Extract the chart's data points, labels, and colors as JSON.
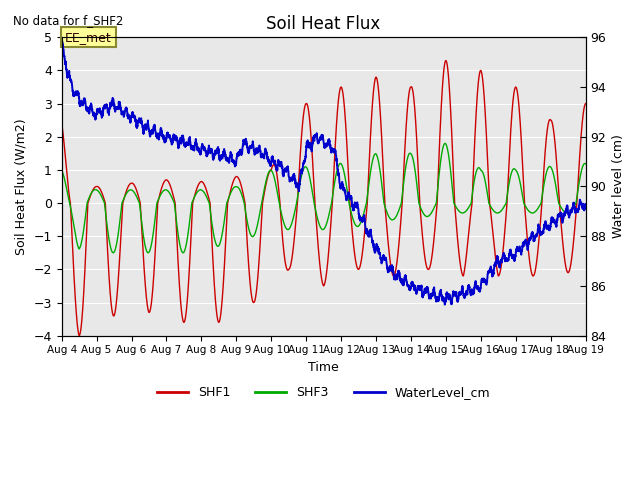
{
  "title": "Soil Heat Flux",
  "subtitle": "No data for f_SHF2",
  "xlabel": "Time",
  "ylabel_left": "Soil Heat Flux (W/m2)",
  "ylabel_right": "Water level (cm)",
  "ylim_left": [
    -4.0,
    5.0
  ],
  "ylim_right": [
    84,
    96
  ],
  "yticks_left": [
    -4.0,
    -3.0,
    -2.0,
    -1.0,
    0.0,
    1.0,
    2.0,
    3.0,
    4.0,
    5.0
  ],
  "yticks_right": [
    84,
    86,
    88,
    90,
    92,
    94,
    96
  ],
  "xtick_labels": [
    "Aug 4",
    "Aug 5",
    "Aug 6",
    "Aug 7",
    "Aug 8",
    "Aug 9",
    "Aug 10",
    "Aug 11",
    "Aug 12",
    "Aug 13",
    "Aug 14",
    "Aug 15",
    "Aug 16",
    "Aug 17",
    "Aug 18",
    "Aug 19"
  ],
  "shf1_color": "#cc0000",
  "shf3_color": "#00aa00",
  "water_color": "#0000cc",
  "plot_bg_color": "#e8e8e8",
  "grid_color": "#ffffff",
  "annotation_text": "EE_met",
  "legend_labels": [
    "SHF1",
    "SHF3",
    "WaterLevel_cm"
  ]
}
